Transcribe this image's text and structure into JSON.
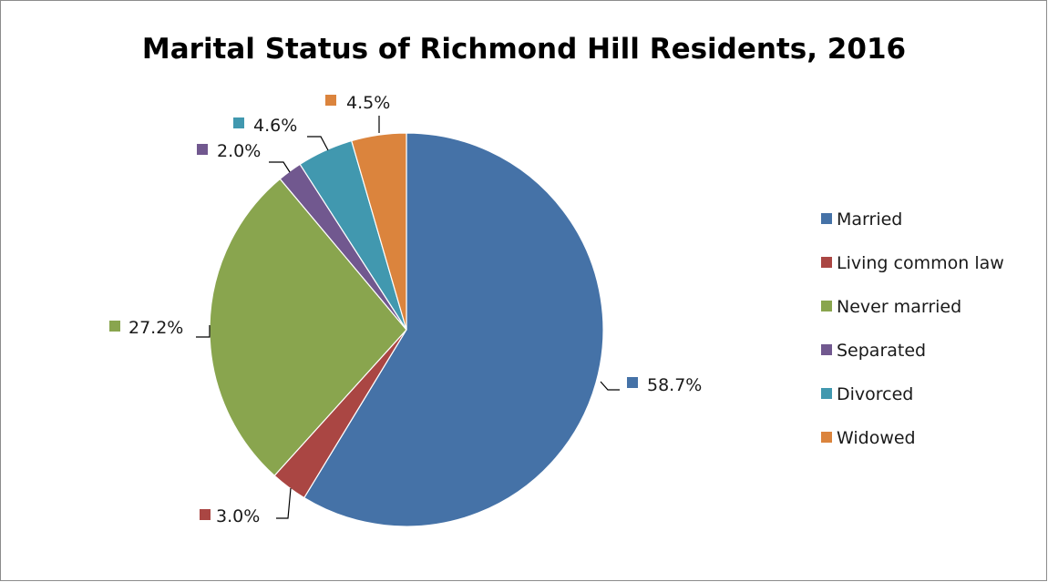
{
  "chart_data": {
    "type": "pie",
    "title": "Marital Status of Richmond Hill Residents, 2016",
    "legend_position": "right",
    "slices": [
      {
        "label": "Married",
        "value": 58.7,
        "display": "58.7%",
        "color": "#4572a7"
      },
      {
        "label": "Living common law",
        "value": 3.0,
        "display": "3.0%",
        "color": "#aa4643"
      },
      {
        "label": "Never married",
        "value": 27.2,
        "display": "27.2%",
        "color": "#89a54e"
      },
      {
        "label": "Separated",
        "value": 2.0,
        "display": "2.0%",
        "color": "#71588f"
      },
      {
        "label": "Divorced",
        "value": 4.6,
        "display": "4.6%",
        "color": "#4198af"
      },
      {
        "label": "Widowed",
        "value": 4.5,
        "display": "4.5%",
        "color": "#db843d"
      }
    ]
  }
}
